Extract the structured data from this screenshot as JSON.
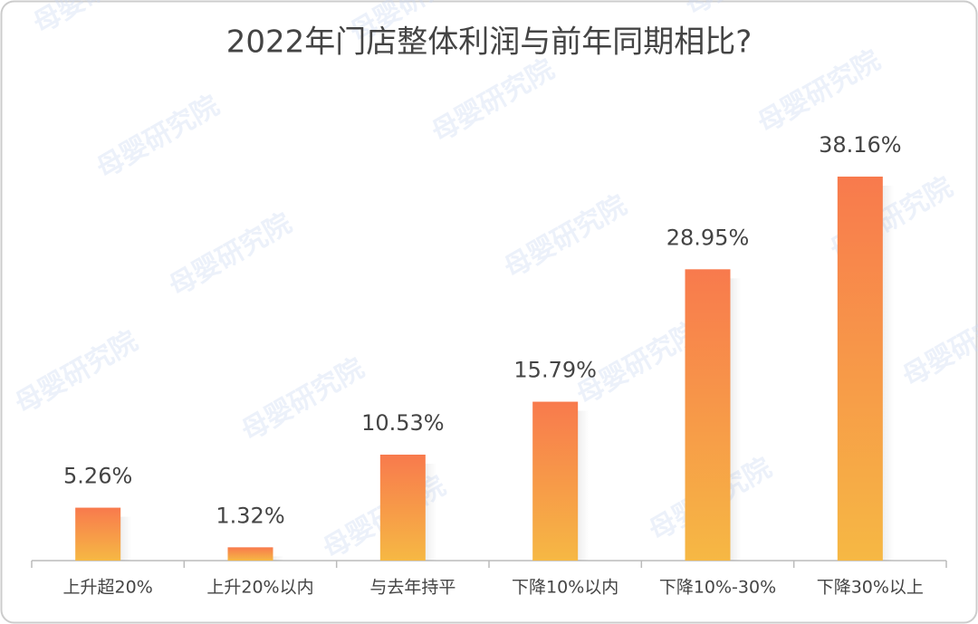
{
  "chart_data": {
    "type": "bar",
    "title": "2022年门店整体利润与前年同期相比?",
    "watermark": "母婴研究院",
    "categories": [
      "上升超20%",
      "上升20%以内",
      "与去年持平",
      "下降10%以内",
      "下降10%-30%",
      "下降30%以上"
    ],
    "values": [
      5.26,
      1.32,
      10.53,
      15.79,
      28.95,
      38.16
    ],
    "value_labels": [
      "5.26%",
      "1.32%",
      "10.53%",
      "15.79%",
      "28.95%",
      "38.16%"
    ],
    "colors": [
      "#f87a4d",
      "#f6b844"
    ]
  }
}
